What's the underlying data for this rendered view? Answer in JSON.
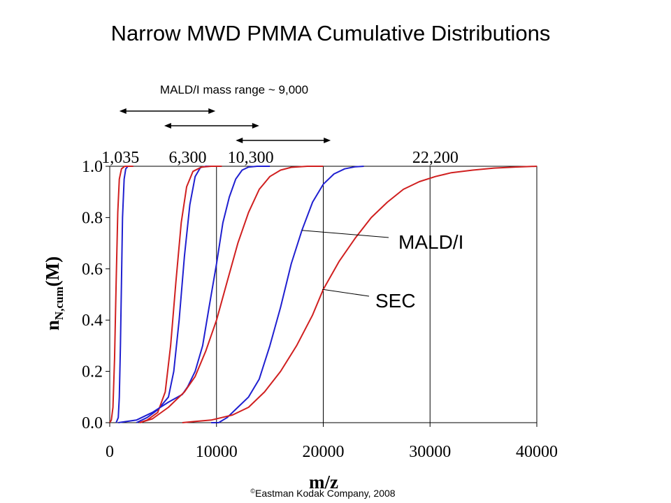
{
  "title": "Narrow MWD PMMA Cumulative Distributions",
  "annotation": "MALD/I mass range ~ 9,000",
  "copyright": {
    "symbol": "©",
    "text": "Eastman Kodak Company, 2008"
  },
  "chart_data": {
    "type": "line",
    "xlabel": "m/z",
    "ylabel": {
      "base": "n",
      "subscript": "N,cum",
      "suffix": "(M)"
    },
    "xlim": [
      0,
      40000
    ],
    "ylim": [
      0,
      1
    ],
    "x_ticks": [
      "0",
      "10000",
      "20000",
      "30000",
      "40000"
    ],
    "y_ticks": [
      "0.0",
      "0.2",
      "0.4",
      "0.6",
      "0.8",
      "1.0"
    ],
    "grid": "x-only",
    "peak_labels": [
      {
        "text": "1,035",
        "x": 1000
      },
      {
        "text": "6,300",
        "x": 7300
      },
      {
        "text": "10,300",
        "x": 13200
      },
      {
        "text": "22,200",
        "x": 30500
      }
    ],
    "series_labels": [
      {
        "text": "MALD/I",
        "points_to": {
          "x": 18000,
          "y": 0.75
        }
      },
      {
        "text": "SEC",
        "points_to": {
          "x": 19900,
          "y": 0.52
        }
      }
    ],
    "mass_range_arrows": [
      {
        "from": 900,
        "to": 9900
      },
      {
        "from": 5100,
        "to": 14000
      },
      {
        "from": 11800,
        "to": 20700
      }
    ],
    "colors": {
      "MALD/I": "#1f1fd0",
      "SEC": "#d01f1f"
    },
    "series": [
      {
        "name": "MALD/I",
        "points": [
          [
            600,
            0
          ],
          [
            800,
            0.02
          ],
          [
            900,
            0.1
          ],
          [
            1000,
            0.3
          ],
          [
            1100,
            0.55
          ],
          [
            1200,
            0.8
          ],
          [
            1350,
            0.95
          ],
          [
            1500,
            0.99
          ],
          [
            1700,
            1
          ],
          [
            2200,
            1
          ]
        ]
      },
      {
        "name": "SEC",
        "points": [
          [
            0,
            0
          ],
          [
            150,
            0.01
          ],
          [
            300,
            0.06
          ],
          [
            450,
            0.25
          ],
          [
            600,
            0.55
          ],
          [
            750,
            0.82
          ],
          [
            900,
            0.95
          ],
          [
            1100,
            0.99
          ],
          [
            1400,
            1
          ],
          [
            2200,
            1
          ]
        ]
      },
      {
        "name": "MALD/I",
        "points": [
          [
            2500,
            0
          ],
          [
            3500,
            0.02
          ],
          [
            4500,
            0.05
          ],
          [
            5500,
            0.1
          ],
          [
            6000,
            0.2
          ],
          [
            6500,
            0.4
          ],
          [
            7000,
            0.65
          ],
          [
            7500,
            0.85
          ],
          [
            8000,
            0.96
          ],
          [
            8500,
            0.995
          ],
          [
            9000,
            1
          ],
          [
            10000,
            1
          ]
        ]
      },
      {
        "name": "SEC",
        "points": [
          [
            2800,
            0
          ],
          [
            3500,
            0.01
          ],
          [
            4500,
            0.04
          ],
          [
            5200,
            0.12
          ],
          [
            5700,
            0.3
          ],
          [
            6200,
            0.55
          ],
          [
            6700,
            0.78
          ],
          [
            7200,
            0.92
          ],
          [
            7800,
            0.98
          ],
          [
            8600,
            0.997
          ],
          [
            9500,
            1
          ],
          [
            10500,
            1
          ]
        ]
      },
      {
        "name": "MALD/I",
        "points": [
          [
            800,
            0
          ],
          [
            2500,
            0.01
          ],
          [
            4000,
            0.04
          ],
          [
            5500,
            0.08
          ],
          [
            6800,
            0.11
          ],
          [
            7300,
            0.14
          ],
          [
            8000,
            0.2
          ],
          [
            8700,
            0.3
          ],
          [
            9300,
            0.45
          ],
          [
            10000,
            0.62
          ],
          [
            10600,
            0.78
          ],
          [
            11200,
            0.88
          ],
          [
            11800,
            0.95
          ],
          [
            12400,
            0.985
          ],
          [
            13000,
            0.997
          ],
          [
            13800,
            1
          ],
          [
            15000,
            1
          ]
        ]
      },
      {
        "name": "SEC",
        "points": [
          [
            2800,
            0
          ],
          [
            4000,
            0.015
          ],
          [
            5500,
            0.06
          ],
          [
            7000,
            0.12
          ],
          [
            8000,
            0.18
          ],
          [
            9000,
            0.28
          ],
          [
            10000,
            0.4
          ],
          [
            11000,
            0.55
          ],
          [
            12000,
            0.7
          ],
          [
            13000,
            0.82
          ],
          [
            14000,
            0.91
          ],
          [
            15000,
            0.96
          ],
          [
            16000,
            0.985
          ],
          [
            17000,
            0.996
          ],
          [
            18500,
            1
          ],
          [
            20000,
            1
          ]
        ]
      },
      {
        "name": "MALD/I",
        "points": [
          [
            9500,
            0
          ],
          [
            10200,
            0
          ],
          [
            11000,
            0.02
          ],
          [
            12000,
            0.06
          ],
          [
            13000,
            0.1
          ],
          [
            14000,
            0.17
          ],
          [
            15000,
            0.3
          ],
          [
            16000,
            0.45
          ],
          [
            17000,
            0.62
          ],
          [
            18000,
            0.75
          ],
          [
            19000,
            0.86
          ],
          [
            20000,
            0.93
          ],
          [
            21000,
            0.97
          ],
          [
            22000,
            0.99
          ],
          [
            23000,
            0.998
          ],
          [
            23800,
            1
          ]
        ]
      },
      {
        "name": "SEC",
        "points": [
          [
            6800,
            0
          ],
          [
            8000,
            0.005
          ],
          [
            9500,
            0.01
          ],
          [
            10500,
            0.02
          ],
          [
            11500,
            0.03
          ],
          [
            13000,
            0.06
          ],
          [
            14500,
            0.12
          ],
          [
            16000,
            0.2
          ],
          [
            17500,
            0.3
          ],
          [
            19000,
            0.42
          ],
          [
            20000,
            0.52
          ],
          [
            21500,
            0.63
          ],
          [
            23000,
            0.72
          ],
          [
            24500,
            0.8
          ],
          [
            26000,
            0.86
          ],
          [
            27500,
            0.91
          ],
          [
            29000,
            0.94
          ],
          [
            30500,
            0.96
          ],
          [
            32000,
            0.975
          ],
          [
            34000,
            0.985
          ],
          [
            36000,
            0.993
          ],
          [
            38000,
            0.997
          ],
          [
            40000,
            1
          ]
        ]
      }
    ]
  }
}
